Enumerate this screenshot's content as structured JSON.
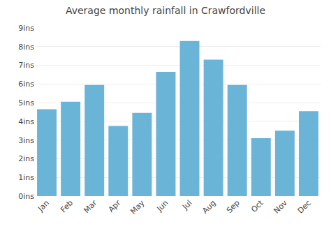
{
  "chart_data": {
    "type": "bar",
    "title": "Average monthly rainfall in Crawfordville",
    "categories": [
      "Jan",
      "Feb",
      "Mar",
      "Apr",
      "May",
      "Jun",
      "Jul",
      "Aug",
      "Sep",
      "Oct",
      "Nov",
      "Dec"
    ],
    "values": [
      4.65,
      5.05,
      5.95,
      3.75,
      4.45,
      6.65,
      8.3,
      7.3,
      5.95,
      3.1,
      3.5,
      4.55
    ],
    "color": "#6ab4d8",
    "ylim": [
      0,
      9
    ],
    "yticks": [
      {
        "value": 0,
        "label": "0ins"
      },
      {
        "value": 1,
        "label": "1ins"
      },
      {
        "value": 2,
        "label": "2ins"
      },
      {
        "value": 3,
        "label": "3ins"
      },
      {
        "value": 4,
        "label": "4ins"
      },
      {
        "value": 5,
        "label": "5ins"
      },
      {
        "value": 6,
        "label": "6ins"
      },
      {
        "value": 7,
        "label": "7ins"
      },
      {
        "value": 8,
        "label": "8ins"
      },
      {
        "value": 9,
        "label": "9ins"
      }
    ],
    "grid": true
  }
}
